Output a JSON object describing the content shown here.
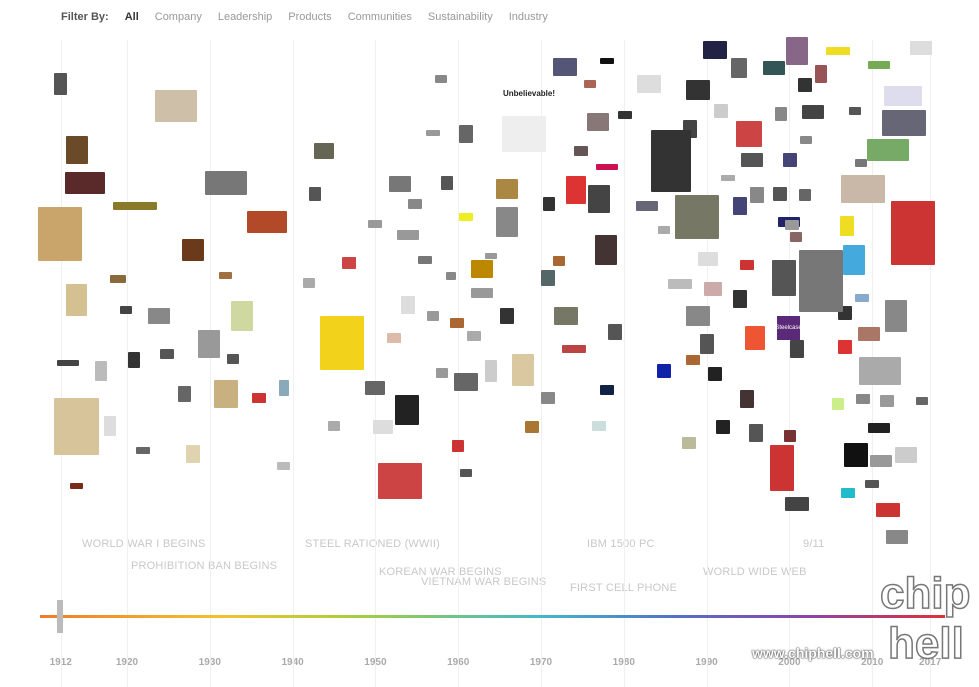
{
  "filters": {
    "label": "Filter By:",
    "options": [
      "All",
      "Company",
      "Leadership",
      "Products",
      "Communities",
      "Sustainability",
      "Industry"
    ]
  },
  "thumbnail_texts": {
    "unbelievable": "Unbelievable!",
    "steelcase": "Steelcase"
  },
  "events": [
    "WORLD WAR I BEGINS",
    "PROHIBITION BAN BEGINS",
    "STEEL RATIONED (WWII)",
    "KOREAN WAR BEGINS",
    "VIETNAM WAR BEGINS",
    "IBM 1500 PC",
    "FIRST CELL PHONE",
    "WORLD WIDE WEB",
    "9/11"
  ],
  "years": [
    1912,
    1920,
    1930,
    1940,
    1950,
    1960,
    1970,
    1980,
    1990,
    2000,
    2010,
    2017
  ],
  "watermark": {
    "url": "www.chiphell.com",
    "logo_top": "chip",
    "logo_bottom": "hell"
  }
}
